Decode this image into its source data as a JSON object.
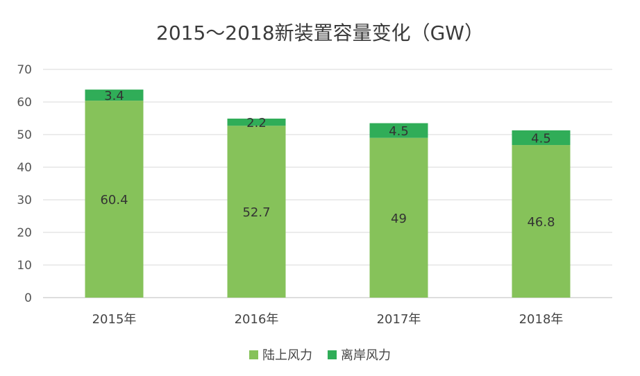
{
  "chart_data": {
    "type": "bar",
    "stacked": true,
    "title": "2015～2018新装置容量变化（GW）",
    "categories": [
      "2015年",
      "2016年",
      "2017年",
      "2018年"
    ],
    "series": [
      {
        "name": "陆上风力",
        "color": "#86c25a",
        "values": [
          60.4,
          52.7,
          49,
          46.8
        ]
      },
      {
        "name": "离岸风力",
        "color": "#30ad58",
        "values": [
          3.4,
          2.2,
          4.5,
          4.5
        ]
      }
    ],
    "ylim": [
      0,
      70
    ],
    "yticks": [
      0,
      10,
      20,
      30,
      40,
      50,
      60,
      70
    ],
    "grid": true,
    "legend_position": "bottom"
  }
}
